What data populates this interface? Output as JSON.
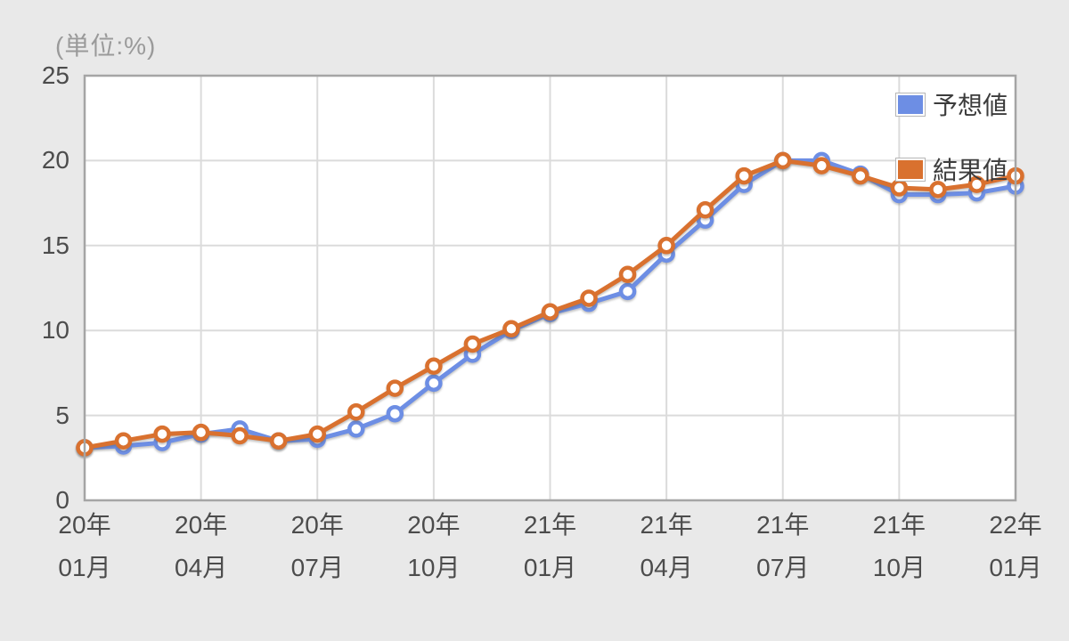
{
  "title": "(単位:%)",
  "legend": {
    "items": [
      {
        "label": "予想値",
        "color": "#6d8ee4"
      },
      {
        "label": "結果値",
        "color": "#d9712f"
      }
    ]
  },
  "chart_data": {
    "type": "line",
    "title": "(単位:%)",
    "x": [
      "20年01月",
      "20年02月",
      "20年03月",
      "20年04月",
      "20年05月",
      "20年06月",
      "20年07月",
      "20年08月",
      "20年09月",
      "20年10月",
      "20年11月",
      "20年12月",
      "21年01月",
      "21年02月",
      "21年03月",
      "21年04月",
      "21年05月",
      "21年06月",
      "21年07月",
      "21年08月",
      "21年09月",
      "21年10月",
      "21年11月",
      "21年12月",
      "22年01月"
    ],
    "x_tick_indices": [
      0,
      3,
      6,
      9,
      12,
      15,
      18,
      21,
      24
    ],
    "x_tick_labels": [
      {
        "year": "20年",
        "month": "01月"
      },
      {
        "year": "20年",
        "month": "04月"
      },
      {
        "year": "20年",
        "month": "07月"
      },
      {
        "year": "20年",
        "month": "10月"
      },
      {
        "year": "21年",
        "month": "01月"
      },
      {
        "year": "21年",
        "month": "04月"
      },
      {
        "year": "21年",
        "month": "07月"
      },
      {
        "year": "21年",
        "month": "10月"
      },
      {
        "year": "22年",
        "month": "01月"
      }
    ],
    "yticks": [
      0,
      5,
      10,
      15,
      20,
      25
    ],
    "ylim": [
      0,
      25
    ],
    "grid": true,
    "legend_position": "top-right",
    "series": [
      {
        "name": "予想値",
        "color": "#6d8ee4",
        "values": [
          3.1,
          3.2,
          3.4,
          3.9,
          4.2,
          3.5,
          3.6,
          4.2,
          5.1,
          6.9,
          8.6,
          10.0,
          11.0,
          11.6,
          12.3,
          14.5,
          16.5,
          18.6,
          20.0,
          20.0,
          19.2,
          18.0,
          18.0,
          18.1,
          18.5
        ]
      },
      {
        "name": "結果値",
        "color": "#d9712f",
        "values": [
          3.1,
          3.5,
          3.9,
          4.0,
          3.8,
          3.5,
          3.9,
          5.2,
          6.6,
          7.9,
          9.2,
          10.1,
          11.1,
          11.9,
          13.3,
          15.0,
          17.1,
          19.1,
          20.0,
          19.7,
          19.1,
          18.4,
          18.3,
          18.6,
          19.1
        ]
      }
    ],
    "plot_colors": {
      "page_bg": "#e9e9e9",
      "plot_bg": "#ffffff",
      "border": "#a5a5a5",
      "gridline": "#dbdbdb",
      "tick_text": "#4c4c4c",
      "title_text": "#9a9a9a"
    }
  }
}
